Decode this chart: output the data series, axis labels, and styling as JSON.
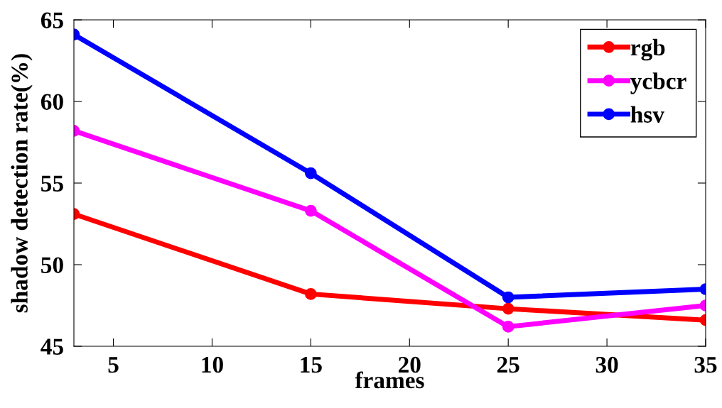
{
  "chart_data": {
    "type": "line",
    "xlabel": "frames",
    "ylabel": "shadow detection rate(%)",
    "x": [
      3,
      15,
      25,
      35
    ],
    "series": [
      {
        "name": "rgb",
        "color": "#ff0000",
        "values": [
          53.1,
          48.2,
          47.3,
          46.6
        ]
      },
      {
        "name": "ycbcr",
        "color": "#ff00ff",
        "values": [
          58.2,
          53.3,
          46.2,
          47.5
        ]
      },
      {
        "name": "hsv",
        "color": "#0000ff",
        "values": [
          64.1,
          55.6,
          48.0,
          48.5
        ]
      }
    ],
    "xlim": [
      3,
      35
    ],
    "ylim": [
      45,
      65
    ],
    "xticks": [
      5,
      10,
      15,
      20,
      25,
      30,
      35
    ],
    "yticks": [
      45,
      50,
      55,
      60,
      65
    ],
    "grid": false,
    "legend": "top right",
    "marker": "circle",
    "line_style": "solid"
  }
}
